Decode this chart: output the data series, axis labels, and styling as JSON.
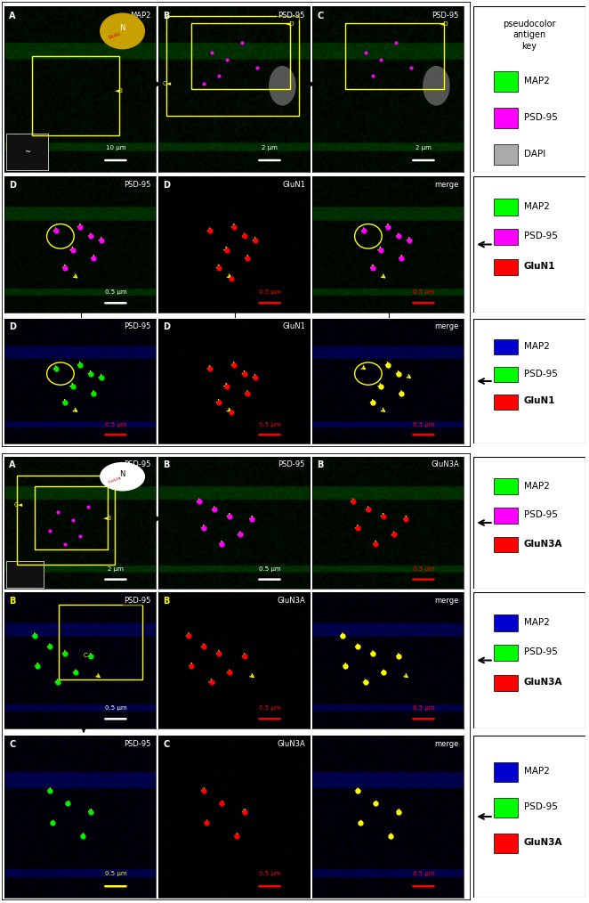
{
  "fig_width": 6.62,
  "fig_height": 10.14,
  "bg_color": "#ffffff",
  "legend_top": {
    "title": "pseudocolor\nantigen\nkey",
    "entries": [
      {
        "color": "#00ff00",
        "label": "MAP2",
        "bold": false
      },
      {
        "color": "#ff00ff",
        "label": "PSD-95",
        "bold": false
      },
      {
        "color": "#aaaaaa",
        "label": "DAPI",
        "bold": false
      }
    ]
  },
  "legend_A_row2": {
    "entries": [
      {
        "color": "#00ff00",
        "label": "MAP2",
        "bold": false
      },
      {
        "color": "#ff00ff",
        "label": "PSD-95",
        "bold": false
      },
      {
        "color": "#ff0000",
        "label": "GluN1",
        "bold": true
      }
    ]
  },
  "legend_A_row3": {
    "entries": [
      {
        "color": "#0000cc",
        "label": "MAP2",
        "bold": false
      },
      {
        "color": "#00ff00",
        "label": "PSD-95",
        "bold": false
      },
      {
        "color": "#ff0000",
        "label": "GluN1",
        "bold": true
      }
    ]
  },
  "legend_B_row1": {
    "entries": [
      {
        "color": "#00ff00",
        "label": "MAP2",
        "bold": false
      },
      {
        "color": "#ff00ff",
        "label": "PSD-95",
        "bold": false
      },
      {
        "color": "#ff0000",
        "label": "GluN3A",
        "bold": true
      }
    ]
  },
  "legend_B_row2": {
    "entries": [
      {
        "color": "#0000cc",
        "label": "MAP2",
        "bold": false
      },
      {
        "color": "#00ff00",
        "label": "PSD-95",
        "bold": false
      },
      {
        "color": "#ff0000",
        "label": "GluN3A",
        "bold": true
      }
    ]
  },
  "legend_B_row3": {
    "entries": [
      {
        "color": "#0000cc",
        "label": "MAP2",
        "bold": false
      },
      {
        "color": "#00ff00",
        "label": "PSD-95",
        "bold": false
      },
      {
        "color": "#ff0000",
        "label": "GluN3A",
        "bold": true
      }
    ]
  }
}
